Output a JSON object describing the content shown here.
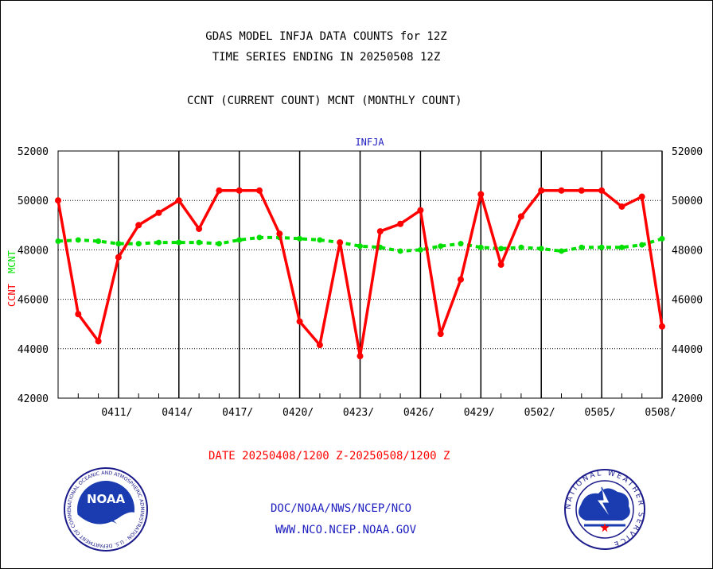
{
  "titles": {
    "line1": "GDAS MODEL INFJA DATA COUNTS for 12Z",
    "line2": "TIME SERIES ENDING IN 20250508 12Z",
    "line3": "CCNT (CURRENT COUNT) MCNT (MONTHLY COUNT)"
  },
  "footer": {
    "date_range": "DATE 20250408/1200 Z-20250508/1200 Z",
    "org_path": "DOC/NOAA/NWS/NCEP/NCO",
    "url": "WWW.NCO.NCEP.NOAA.GOV"
  },
  "logos": {
    "left": {
      "text": "NOAA",
      "ring_text": "NATIONAL OCEANIC AND ATMOSPHERIC ADMINISTRATION · U.S. DEPARTMENT OF COMMERCE ·"
    },
    "right": {
      "ring_text": "NATIONAL WEATHER SERVICE"
    }
  },
  "colors": {
    "ccnt": "#ff0000",
    "mcnt": "#00e000",
    "axis": "#000000",
    "plot_title": "#2020c0"
  },
  "chart_data": {
    "type": "line",
    "title": "INFJA",
    "ylabel_ccnt": "CCNT",
    "ylabel_mcnt": "MCNT",
    "ylim": [
      42000,
      52000
    ],
    "yticks": [
      42000,
      44000,
      46000,
      48000,
      50000,
      52000
    ],
    "xlim": [
      "2025-04-08",
      "2025-05-08"
    ],
    "xtick_dates": [
      "2025-04-11",
      "2025-04-14",
      "2025-04-17",
      "2025-04-20",
      "2025-04-23",
      "2025-04-26",
      "2025-04-29",
      "2025-05-02",
      "2025-05-05",
      "2025-05-08"
    ],
    "xtick_labels": [
      "0411/",
      "0414/",
      "0417/",
      "0420/",
      "0423/",
      "0426/",
      "0429/",
      "0502/",
      "0505/",
      "0508/"
    ],
    "grid": true,
    "dates": [
      "2025-04-08",
      "2025-04-09",
      "2025-04-10",
      "2025-04-11",
      "2025-04-12",
      "2025-04-13",
      "2025-04-14",
      "2025-04-15",
      "2025-04-16",
      "2025-04-17",
      "2025-04-18",
      "2025-04-19",
      "2025-04-20",
      "2025-04-21",
      "2025-04-22",
      "2025-04-23",
      "2025-04-24",
      "2025-04-25",
      "2025-04-26",
      "2025-04-27",
      "2025-04-28",
      "2025-04-29",
      "2025-04-30",
      "2025-05-01",
      "2025-05-02",
      "2025-05-03",
      "2025-05-04",
      "2025-05-05",
      "2025-05-06",
      "2025-05-07",
      "2025-05-08"
    ],
    "series": [
      {
        "name": "CCNT",
        "values": [
          50000,
          45400,
          44300,
          47700,
          49000,
          49500,
          50000,
          48850,
          50400,
          50400,
          50400,
          48650,
          45100,
          44150,
          48300,
          43700,
          48750,
          49050,
          49600,
          44600,
          46800,
          50250,
          47400,
          49350,
          50400,
          50400,
          50400,
          50400,
          49750,
          50150,
          44900
        ]
      },
      {
        "name": "MCNT",
        "values": [
          48350,
          48400,
          48350,
          48250,
          48250,
          48300,
          48300,
          48300,
          48250,
          48400,
          48500,
          48500,
          48450,
          48400,
          48300,
          48150,
          48100,
          47950,
          48000,
          48150,
          48250,
          48100,
          48050,
          48100,
          48050,
          47950,
          48100,
          48100,
          48100,
          48200,
          48450
        ]
      }
    ]
  }
}
